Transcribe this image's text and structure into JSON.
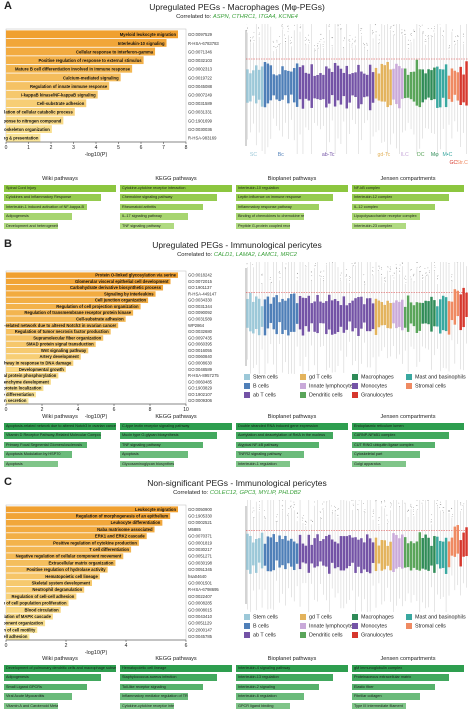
{
  "colors": {
    "sc": "#9cc8d8",
    "bc": "#4f7fb8",
    "abtc": "#7453a6",
    "gdtc": "#e3b35c",
    "ilc": "#c9a9d9",
    "dc": "#5aa55a",
    "mf": "#2e8b57",
    "mmc": "#3aa8a0",
    "sc2": "#ef8a62",
    "gc": "#d6372d",
    "bar_hi": "#f0a030",
    "bar_lo": "#fbeaa0",
    "pw_a": "#8cc63f",
    "pw_b": "#5cb85c",
    "pw_c": "#2e9e4f"
  },
  "panels": [
    {
      "label": "A",
      "title": "Upregulated PEGs - Macrophages (Mφ-PEGs)",
      "correlated_prefix": "Correlated to:",
      "genes": "ASPN, CTHRC1, ITGA4, KCNE4",
      "terms": [
        {
          "name": "Myeloid leukocyte migration",
          "id": "GO:0097529"
        },
        {
          "name": "Interleukin-10 signaling",
          "id": "R-HSA-6783783"
        },
        {
          "name": "Cellular response to interferon-gamma",
          "id": "GO:0071346"
        },
        {
          "name": "Positive regulation of response to external stimulus",
          "id": "GO:0032103"
        },
        {
          "name": "Mature B cell differentiation involved in immune response",
          "id": "GO:0002313"
        },
        {
          "name": "Calcium-mediated signaling",
          "id": "GO:0019722"
        },
        {
          "name": "Regulation of innate immune response",
          "id": "GO:0045088"
        },
        {
          "name": "I-kappaB kinase/NF-kappaB signaling",
          "id": "GO:0007249"
        },
        {
          "name": "Cell-substrate adhesion",
          "id": "GO:0031589"
        },
        {
          "name": "Positive regulation of cellular catabolic process",
          "id": "GO:0031331"
        },
        {
          "name": "Cellular response to nitrogen compound",
          "id": "GO:1901699"
        },
        {
          "name": "Actin cytoskeleton organization",
          "id": "GO:0030036"
        },
        {
          "name": "Class I MHC mediated antigen processing & presentation",
          "id": "R-HSA-983169"
        }
      ],
      "axis_ticks": [
        "0",
        "1",
        "2",
        "3",
        "4",
        "5",
        "6",
        "7",
        "8"
      ],
      "axis_label": "-log10(P)",
      "legend_style": "inline",
      "legend": [
        {
          "label": "SC",
          "color": "sc"
        },
        {
          "label": "Bc",
          "color": "bc"
        },
        {
          "label": "ab-Tc",
          "color": "abtc"
        },
        {
          "label": "gd-Tc",
          "color": "gdtc"
        },
        {
          "label": "ILC",
          "color": "ilc"
        },
        {
          "label": "DC",
          "color": "dc"
        },
        {
          "label": "Mφ",
          "color": "mf"
        },
        {
          "label": "M•C",
          "color": "mmc"
        },
        {
          "label": "GC",
          "color": "gc"
        },
        {
          "label": "Str.C",
          "color": "sc2"
        }
      ],
      "pathways": [
        {
          "title": "Wiki pathways",
          "items": [
            "Spinal Cord Injury",
            "Cytokines and Inflammatory Response",
            "Interleukin-1 induced activation of NF-kappa-B",
            "Adipogenesis",
            "Development and heterogeneity of the ILC family"
          ]
        },
        {
          "title": "KEGG pathways",
          "items": [
            "Cytokine-cytokine receptor interaction",
            "Chemokine signaling pathway",
            "Rheumatoid arthritis",
            "IL-17 signaling pathway",
            "TNF signaling pathway"
          ]
        },
        {
          "title": "Bioplanet pathways",
          "items": [
            "Interleukin-10 regulation",
            "Leptin influence on immune response",
            "Inflammatory response pathway",
            "Binding of chemokines to chemokine receptors",
            "Peptide G-protein coupled receptors"
          ]
        },
        {
          "title": "Jensen compartments",
          "items": [
            "NF-kB complex",
            "Interleukin-12 complex",
            "IL-12 complex",
            "Lipopolysaccharide receptor complex",
            "Interleukin-23 complex"
          ]
        }
      ]
    },
    {
      "label": "B",
      "title": "Upregulated PEGs - Immunological pericytes",
      "correlated_prefix": "Correlated to:",
      "genes": "CALD1, LAMA2, LAMC1, MRC2",
      "terms": [
        {
          "name": "Protein O-linked glycosylation via serine",
          "id": "GO:0018242"
        },
        {
          "name": "Glomerular visceral epithelial cell development",
          "id": "GO:0072015"
        },
        {
          "name": "Carbohydrate derivative biosynthetic process",
          "id": "GO:1901137"
        },
        {
          "name": "Signaling by Interleukins",
          "id": "R-HSA-449147"
        },
        {
          "name": "Cell junction organization",
          "id": "GO:0034330"
        },
        {
          "name": "Regulation of cell projection organization",
          "id": "GO:0031344"
        },
        {
          "name": "Regulation of transmembrane receptor protein kinase",
          "id": "GO:0090092"
        },
        {
          "name": "Cell-substrate adhesion",
          "id": "GO:0031589"
        },
        {
          "name": "Apoptosis-related network due to altered Notch3 in ovarian cancer",
          "id": "WP2864"
        },
        {
          "name": "Regulation of tumor necrosis factor production",
          "id": "GO:0032680"
        },
        {
          "name": "Supramolecular fiber organization",
          "id": "GO:0097435"
        },
        {
          "name": "SMAD protein signal transduction",
          "id": "GO:0060395"
        },
        {
          "name": "Wnt signaling pathway",
          "id": "GO:0016055"
        },
        {
          "name": "Artery development",
          "id": "GO:0060840"
        },
        {
          "name": "Intrinsic apoptotic signaling pathway in response to DNA damage",
          "id": "GO:0008630"
        },
        {
          "name": "Developmental growth",
          "id": "GO:0048589"
        },
        {
          "name": "Post-translational protein phosphorylation",
          "id": "R-HSA-8957275"
        },
        {
          "name": "Mesenchyme development",
          "id": "GO:0060485"
        },
        {
          "name": "Positive regulation of cellular protein localization",
          "id": "GO:1903829"
        },
        {
          "name": "Positive regulation of leukocyte differentiation",
          "id": "GO:1902107"
        },
        {
          "name": "Protein secretion",
          "id": "GO:0009306"
        }
      ],
      "axis_ticks": [
        "0",
        "2",
        "4",
        "6",
        "8",
        "10"
      ],
      "axis_label": "-log10(P)",
      "legend_style": "grid",
      "legend": [
        {
          "label": "Stem cells",
          "color": "sc"
        },
        {
          "label": "gd T cells",
          "color": "gdtc"
        },
        {
          "label": "Macrophages",
          "color": "mf"
        },
        {
          "label": "Mast and basinophils",
          "color": "mmc"
        },
        {
          "label": "B cells",
          "color": "bc"
        },
        {
          "label": "Innate lymphocytes",
          "color": "ilc"
        },
        {
          "label": "Monocytes",
          "color": "abtc"
        },
        {
          "label": "Stromal cells",
          "color": "sc2"
        },
        {
          "label": "ab T cells",
          "color": "abtc"
        },
        {
          "label": "Dendritic cells",
          "color": "dc"
        },
        {
          "label": "Granulocytes",
          "color": "gc"
        }
      ],
      "pathways": [
        {
          "title": "Wiki pathways",
          "items": [
            "Apoptosis-related network due to altered Notch3 in ovarian cancer",
            "Vitamin D Receptor Pathway-Related Molecular Compounds",
            "Primary Focal Segmental Glomerulosclerosis",
            "Apoptosis Modulation by HSP70",
            "Apoptosis"
          ]
        },
        {
          "title": "KEGG pathways",
          "items": [
            "C-type lectin receptor signaling pathway",
            "Mucin type O-glycan biosynthesis",
            "TNF signaling pathway",
            "Apoptosis",
            "Glycosaminoglycan biosynthesis"
          ]
        },
        {
          "title": "Bioplanet pathways",
          "items": [
            "Double stranded RNA induced gene expression",
            "Acetylation and deacetylation of RelA in the nucleus",
            "Atypical NF-kB pathway",
            "TNFR2 signaling pathway",
            "Interleukin-1 regulation"
          ]
        },
        {
          "title": "Jensen compartments",
          "items": [
            "Endoplasmic reticulum lumen",
            "CARNP-NFkB1 complex",
            "CUT RING ubiquitin ligase complex",
            "Cytoskeletal part",
            "Golgi apparatus"
          ]
        }
      ]
    },
    {
      "label": "C",
      "title": "Non-significant PEGs - Immunological pericytes",
      "correlated_prefix": "Correlated to:",
      "genes": "COLEC12, GPC3, MYLIP, PHLDB2",
      "terms": [
        {
          "name": "Leukocyte migration",
          "id": "GO:0050900"
        },
        {
          "name": "Regulation of morphogenesis of an epithelium",
          "id": "GO:1905330"
        },
        {
          "name": "Leukocyte differentiation",
          "id": "GO:0002521"
        },
        {
          "name": "Naba matrisome associated",
          "id": "M5885"
        },
        {
          "name": "ERK1 and ERK2 cascade",
          "id": "GO:0070371"
        },
        {
          "name": "Positive regulation of cytokine production",
          "id": "GO:0001819"
        },
        {
          "name": "T cell differentiation",
          "id": "GO:0030217"
        },
        {
          "name": "Negative regulation of cellular component movement",
          "id": "GO:0051271"
        },
        {
          "name": "Extracellular matrix organization",
          "id": "GO:0030198"
        },
        {
          "name": "Positive regulation of hydrolase activity",
          "id": "GO:0051345"
        },
        {
          "name": "Hematopoietic cell lineage",
          "id": "hsa04640"
        },
        {
          "name": "Skeletal system development",
          "id": "GO:0001501"
        },
        {
          "name": "Neutrophil degranulation",
          "id": "R-HSA-6798695"
        },
        {
          "name": "Regulation of cell-cell adhesion",
          "id": "GO:0022407"
        },
        {
          "name": "Negative regulation of cell population proliferation",
          "id": "GO:0008285"
        },
        {
          "name": "Blood circulation",
          "id": "GO:0008015"
        },
        {
          "name": "Positive regulation of MAPK cascade",
          "id": "GO:0043410"
        },
        {
          "name": "Negative regulation of cellular component organization",
          "id": "GO:0051129"
        },
        {
          "name": "Positive regulation of cell motility",
          "id": "GO:2000147"
        },
        {
          "name": "Positive regulation of cell adhesion",
          "id": "GO:0045785"
        }
      ],
      "axis_ticks": [
        "0",
        "2",
        "4",
        "6"
      ],
      "axis_label": "-log10(P)",
      "legend_style": "grid",
      "legend": [
        {
          "label": "Stem cells",
          "color": "sc"
        },
        {
          "label": "gd T cells",
          "color": "gdtc"
        },
        {
          "label": "Macrophages",
          "color": "mf"
        },
        {
          "label": "Mast and basinophils",
          "color": "mmc"
        },
        {
          "label": "B cells",
          "color": "bc"
        },
        {
          "label": "Innate lymphocytes",
          "color": "ilc"
        },
        {
          "label": "Monocytes",
          "color": "abtc"
        },
        {
          "label": "Stromal cells",
          "color": "sc2"
        },
        {
          "label": "ab T cells",
          "color": "abtc"
        },
        {
          "label": "Dendritic cells",
          "color": "dc"
        },
        {
          "label": "Granulocytes",
          "color": "gc"
        }
      ],
      "pathways": [
        {
          "title": "Wiki pathways",
          "items": [
            "Development of pulmonary dendritic cells and macrophage subsets",
            "Adipogenesis",
            "Small Ligand GPCRs",
            "Viral Acute Myocarditis",
            "Vitamin A and Carotenoid Metabolism"
          ]
        },
        {
          "title": "KEGG pathways",
          "items": [
            "Hematopoietic cell lineage",
            "Staphylococcus aureus infection",
            "Toll-like receptor signaling",
            "Inflammatory mediator regulation of TRP channels",
            "Cytokine-cytokine receptor interaction"
          ]
        },
        {
          "title": "Bioplanet pathways",
          "items": [
            "Interleukin-4 signaling pathway",
            "Interleukin-13 regulation",
            "Interleukin-2 signaling",
            "Interleukin-6 regulation",
            "GPCR ligand binding"
          ]
        },
        {
          "title": "Jensen compartments",
          "items": [
            "gM immunoglobulin complex",
            "Proteinaceous extracellular matrix",
            "Elastic fiber",
            "Fibrillar collagen",
            "Type III intermediate filament"
          ]
        }
      ]
    }
  ]
}
